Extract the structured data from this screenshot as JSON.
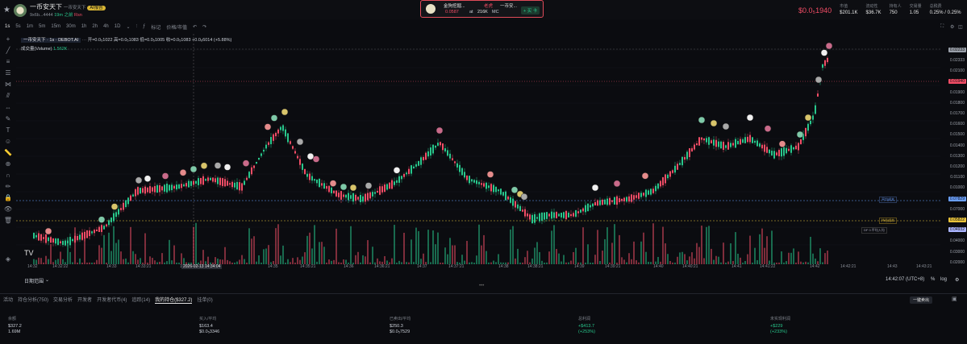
{
  "token": {
    "name": "一币安天下",
    "subname": "一币安天下",
    "meta": "9x6b...4444",
    "age": "19m 之前",
    "ai_badge": "AI报告",
    "risk": "Rsn"
  },
  "popup": {
    "title": "金狗挖掘...",
    "tag": "老虎",
    "name": "一币安...",
    "price": "0.0587",
    "at": "at",
    "mc_value": "216K",
    "mc_label": "MC",
    "button": "+ 买 卡"
  },
  "stats": {
    "price": "$0.0₅1940",
    "items": [
      {
        "label": "市值",
        "value": "$201.1K"
      },
      {
        "label": "流动性",
        "value": "$36.7K"
      },
      {
        "label": "持有人",
        "value": "750"
      },
      {
        "label": "交易量",
        "value": "1.05"
      },
      {
        "label": "总税费",
        "value": "0.25% / 0.25%"
      }
    ]
  },
  "toolbar": {
    "timeframes": [
      "1s",
      "5s",
      "1m",
      "5m",
      "15m",
      "30m",
      "1h",
      "2h",
      "4h",
      "1D"
    ],
    "indicator": "标记",
    "price_mc": "价格/市值"
  },
  "legend": {
    "pair": "一币安天下 · 1s · DEBOT.AI",
    "ohlc": "开=0.0₅1022 高=0.0₅1083 低=0.0₅1005 收=0.0₅1083 +0.0₆6014 (+5.88%)",
    "volume_label": "成交量(Volume)",
    "volume_value": "1.562K"
  },
  "y_labels": [
    "0.02333",
    "0.02100",
    "0.02000",
    "0.01900",
    "0.01800",
    "0.01700",
    "0.01600",
    "0.01500",
    "0.01400",
    "0.01300",
    "0.01200",
    "0.01100",
    "0.01000",
    "0.09000",
    "0.07000",
    "0.06000",
    "0.05000",
    "0.04000",
    "0.03000",
    "0.02000"
  ],
  "y_tags": {
    "top": "0.02233",
    "current": "0.01940",
    "mid": "0.07829",
    "low1": "0.05822",
    "low2": "0.04932"
  },
  "chart_tags": {
    "avg_buy": "平均成本",
    "avg_sell": "持仓成本",
    "mine": "DF 0.平均入均"
  },
  "x_labels": [
    "14:32",
    "14:32:22",
    "14:33",
    "14:33:21",
    "14:34",
    "2026-02-13  14:34:04",
    "14:35",
    "14:35:21",
    "14:36",
    "14:36:21",
    "14:37",
    "14:37:21",
    "14:38",
    "14:38:21",
    "14:39",
    "14:39:21",
    "14:40",
    "14:40:21",
    "14:41",
    "14:41:22",
    "14:42",
    "14:42:21",
    "14:43",
    "14:43:21"
  ],
  "bottom": {
    "range": "日期范围",
    "time": "14:42:07 (UTC+8)",
    "pct": "%",
    "log": "log"
  },
  "tabs": [
    "活动",
    "持仓分析(750)",
    "交易分析",
    "开发者",
    "开发者代币(4)",
    "追踪(14)",
    "我的持仓($327.2)",
    "挂单(0)"
  ],
  "sell_button": "一键卖出",
  "positions": {
    "headers": [
      "余额",
      "买入/平均",
      "已卖出/平均",
      "总利润",
      "未实现利润"
    ],
    "values": [
      [
        "$327.2",
        "1.69M"
      ],
      [
        "$163.4",
        "$0.0₅3346"
      ],
      [
        "$250.3",
        "$0.0₅7529"
      ],
      [
        "+$413.7",
        "(+253%)"
      ],
      [
        "+$229",
        "(+233%)"
      ]
    ]
  },
  "colors": {
    "up": "#28c78c",
    "down": "#f24d66",
    "bg": "#0b0c10"
  }
}
